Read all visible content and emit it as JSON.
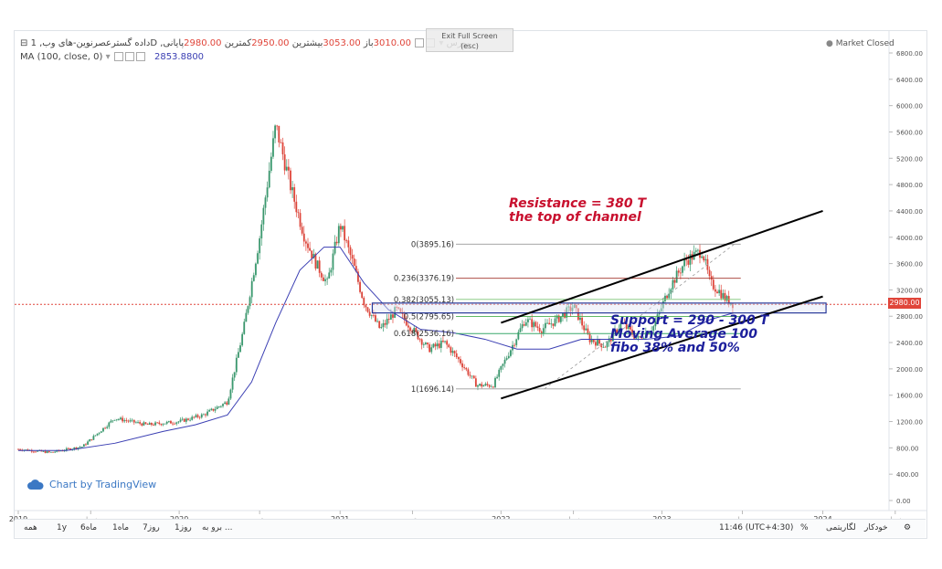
{
  "header": {
    "symbol_title": "داده گسترعصرنوین-های وب, 1D ,بورس",
    "open_label": "باز",
    "open_value": "3010.00",
    "high_label": "بیشترین",
    "high_value": "3053.00",
    "low_label": "کمترین",
    "low_value": "2950.00",
    "close_label": "پایانی",
    "close_value": "2980.00",
    "ma_label": "MA (100, close, 0)",
    "ma_value": "2853.8800",
    "market_status": "Market Closed",
    "exit_fullscreen": "Exit Full Screen",
    "exit_hint": "(esc)"
  },
  "brand": "Chart by TradingView",
  "price_tag": "2980.00",
  "annotations": {
    "resistance_line1": "Resistance = 380 T",
    "resistance_line2": "the top of channel",
    "support_line1": "Support = 290 - 300 T",
    "support_line2": "Moving Average 100",
    "support_line3": "fibo 38% and 50%"
  },
  "toolbar": {
    "goto": "برو به ...",
    "time": "11:46 (UTC+4:30)",
    "percent": "%",
    "log": "لگاریتمی",
    "auto": "خودکار",
    "ranges": [
      "همه",
      "1y",
      "6ماه",
      "1ماه",
      "7روز",
      "1روز"
    ]
  },
  "colors": {
    "candle_up": "#3b9a6f",
    "candle_down": "#e0453a",
    "ma": "#3b3fb3",
    "resistance_text": "#c8102e",
    "support_text": "#1c1f9c",
    "fib_0": "#9a9a9a",
    "fib_236": "#a0342a",
    "fib_382": "#7cc576",
    "fib_50": "#4caf50",
    "fib_618": "#3aa86b",
    "fib_1": "#9a9a9a",
    "zone": "#2a3a9a"
  },
  "chart_data": {
    "type": "line",
    "title": "داده گسترعصرنوین-های وب, 1D ,بورس",
    "x_ticks": [
      "2019",
      "خرداد",
      "2020",
      "تیر",
      "2021",
      "تیر",
      "2022",
      "خرداد",
      "2023",
      "مرداد",
      "2024",
      "خرداد"
    ],
    "y_ticks": [
      "6800.00",
      "6400.00",
      "6000.00",
      "5600.00",
      "5200.00",
      "4800.00",
      "4400.00",
      "4000.00",
      "3600.00",
      "3200.00",
      "2800.00",
      "2400.00",
      "2000.00",
      "1600.00",
      "1200.00",
      "800.00",
      "400.00",
      "0.00"
    ],
    "ylim": [
      0,
      7000
    ],
    "grid": true,
    "last_price": 2980,
    "series": [
      {
        "name": "داده گسترعصرنوین-های وب",
        "x": [
          2019.0,
          2019.2,
          2019.4,
          2019.6,
          2019.8,
          2020.0,
          2020.15,
          2020.3,
          2020.4,
          2020.5,
          2020.6,
          2020.7,
          2020.78,
          2020.85,
          2020.92,
          2021.0,
          2021.08,
          2021.15,
          2021.25,
          2021.35,
          2021.45,
          2021.55,
          2021.65,
          2021.75,
          2021.85,
          2021.95,
          2022.05,
          2022.15,
          2022.25,
          2022.35,
          2022.45,
          2022.55,
          2022.65,
          2022.75,
          2022.85,
          2022.95,
          2023.05,
          2023.15,
          2023.25,
          2023.3,
          2023.35,
          2023.4,
          2023.45
        ],
        "values": [
          780,
          730,
          820,
          1250,
          1150,
          1200,
          1300,
          1500,
          2600,
          4000,
          5700,
          4700,
          4000,
          3600,
          3300,
          4200,
          3600,
          3000,
          2600,
          2900,
          2600,
          2300,
          2400,
          2100,
          1750,
          1750,
          2250,
          2750,
          2600,
          2750,
          2950,
          2450,
          2350,
          2700,
          2450,
          2650,
          3250,
          3650,
          3800,
          3300,
          3200,
          3050,
          2980
        ]
      },
      {
        "name": "MA (100, close, 0)",
        "x": [
          2019.0,
          2019.3,
          2019.6,
          2019.9,
          2020.1,
          2020.3,
          2020.45,
          2020.6,
          2020.75,
          2020.9,
          2021.0,
          2021.15,
          2021.3,
          2021.5,
          2021.7,
          2021.9,
          2022.1,
          2022.3,
          2022.5,
          2022.7,
          2022.9,
          2023.1,
          2023.3,
          2023.45
        ],
        "values": [
          760,
          760,
          870,
          1050,
          1150,
          1300,
          1800,
          2700,
          3500,
          3850,
          3850,
          3300,
          2900,
          2600,
          2550,
          2450,
          2300,
          2300,
          2450,
          2450,
          2450,
          2500,
          2750,
          2854
        ]
      }
    ],
    "fibonacci": [
      {
        "label": "0(3895.16)",
        "level": 0,
        "price": 3895.16
      },
      {
        "label": "0.236(3376.19)",
        "level": 0.236,
        "price": 3376.19
      },
      {
        "label": "0.382(3055.13)",
        "level": 0.382,
        "price": 3055.13
      },
      {
        "label": "0.5(2795.65)",
        "level": 0.5,
        "price": 2795.65
      },
      {
        "label": "0.618(2536.16)",
        "level": 0.618,
        "price": 2536.16
      },
      {
        "label": "1(1696.14)",
        "level": 1,
        "price": 1696.14
      }
    ],
    "support_zone": [
      2850,
      3000
    ],
    "channel": [
      {
        "name": "upper",
        "x": [
          2022.0,
          2024.0
        ],
        "values": [
          2700,
          4400
        ]
      },
      {
        "name": "lower",
        "x": [
          2022.0,
          2024.0
        ],
        "values": [
          1550,
          3100
        ]
      }
    ]
  }
}
